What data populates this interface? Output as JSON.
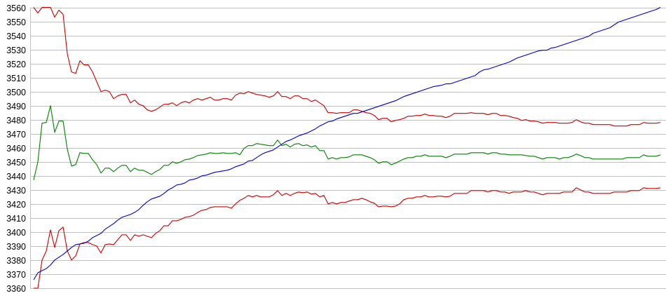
{
  "chart_data": {
    "type": "line",
    "title": "",
    "xlabel": "",
    "ylabel": "",
    "ylim": [
      3360,
      3560
    ],
    "y_tick_step": 10,
    "y_ticks": [
      "3560",
      "3550",
      "3540",
      "3530",
      "3520",
      "3510",
      "3500",
      "3490",
      "3480",
      "3470",
      "3460",
      "3450",
      "3440",
      "3430",
      "3420",
      "3410",
      "3400",
      "3390",
      "3380",
      "3370",
      "3360"
    ],
    "grid": "horizontal",
    "legend": "none",
    "x_axis_labels": "none",
    "series": [
      {
        "color": "#cc0000",
        "values": [
          3560,
          3556,
          3560,
          3560,
          3560,
          3553,
          3558,
          3555,
          3527,
          3514,
          3513,
          3522,
          3519,
          3519,
          3514,
          3507,
          3500,
          3501,
          3500,
          3495,
          3497,
          3498,
          3498,
          3492,
          3494,
          3491,
          3490,
          3487,
          3486,
          3487,
          3489,
          3491,
          3491,
          3492,
          3490,
          3492,
          3493,
          3492,
          3494,
          3495,
          3494,
          3495,
          3496,
          3494,
          3494,
          3495,
          3495,
          3494,
          3497.5,
          3499,
          3498.5,
          3500,
          3499,
          3498,
          3497.5,
          3497,
          3496,
          3497,
          3500,
          3496.5,
          3496.5,
          3495,
          3497,
          3497,
          3495,
          3495,
          3493,
          3494,
          3492,
          3490,
          3485,
          3485,
          3484.5,
          3485,
          3485,
          3485,
          3487,
          3487,
          3486,
          3485,
          3484.5,
          3483,
          3480,
          3481,
          3481,
          3478.5,
          3479.5,
          3480,
          3481,
          3482.5,
          3482.5,
          3483,
          3483,
          3484,
          3483,
          3483,
          3482.5,
          3482.5,
          3481.5,
          3482.5,
          3484.5,
          3484.5,
          3484.5,
          3484.5,
          3485,
          3484.5,
          3484.5,
          3484.5,
          3483.5,
          3484.5,
          3484.5,
          3483,
          3483,
          3482.5,
          3481.5,
          3481,
          3479.5,
          3480,
          3479,
          3479,
          3478.5,
          3477.5,
          3478,
          3478,
          3478,
          3477.5,
          3477.5,
          3477.5,
          3478,
          3480,
          3478.5,
          3477.5,
          3477.5,
          3476.5,
          3476.5,
          3476.5,
          3476.5,
          3476.5,
          3475.5,
          3475.5,
          3475.5,
          3475.5,
          3476.5,
          3476.5,
          3476.5,
          3478,
          3477.5,
          3477.5,
          3477.5,
          3478
        ]
      },
      {
        "color": "#008000",
        "values": [
          3437,
          3450,
          3477.5,
          3478,
          3490,
          3471,
          3479,
          3479,
          3459,
          3447,
          3448,
          3456.5,
          3456,
          3456,
          3451.5,
          3448,
          3442,
          3445.5,
          3445.5,
          3443,
          3445.5,
          3447.5,
          3447.5,
          3443,
          3445.5,
          3444,
          3444,
          3442.5,
          3441,
          3443,
          3444.5,
          3447.5,
          3447.5,
          3450,
          3449,
          3450,
          3451.5,
          3452,
          3453,
          3454.5,
          3455,
          3455.5,
          3456.5,
          3456,
          3456,
          3456.5,
          3456,
          3456,
          3456.5,
          3455,
          3459.5,
          3461.5,
          3461.5,
          3463,
          3462.5,
          3462,
          3461.5,
          3461.5,
          3465.5,
          3461.5,
          3462.5,
          3460.5,
          3462.5,
          3463,
          3461.5,
          3462,
          3460.5,
          3461.5,
          3458,
          3458,
          3452,
          3453,
          3452,
          3453,
          3453,
          3453.5,
          3455,
          3455,
          3455,
          3454,
          3453,
          3451.5,
          3449,
          3450,
          3450,
          3448,
          3449,
          3450.5,
          3452,
          3453,
          3453,
          3454,
          3454,
          3455,
          3454,
          3454,
          3454,
          3454,
          3453,
          3454,
          3455.5,
          3455.5,
          3455.5,
          3455.5,
          3456.5,
          3456.5,
          3456.5,
          3456.5,
          3455.5,
          3456.5,
          3456.5,
          3455.5,
          3455.5,
          3455,
          3455,
          3455,
          3455,
          3454.5,
          3454,
          3454,
          3453,
          3452,
          3453,
          3453,
          3453,
          3452,
          3453,
          3453,
          3454,
          3455.5,
          3454.5,
          3453,
          3453,
          3452,
          3452,
          3452,
          3452,
          3452,
          3452,
          3452,
          3452,
          3453,
          3453,
          3453,
          3453,
          3455,
          3454,
          3454,
          3454,
          3455
        ]
      },
      {
        "color": "#cc0000",
        "values": [
          3360,
          3360,
          3380,
          3386.5,
          3401.5,
          3389,
          3401,
          3403.5,
          3386.5,
          3380,
          3383,
          3391.5,
          3392.5,
          3392.5,
          3391,
          3390,
          3385,
          3391,
          3391.5,
          3391,
          3394.5,
          3398,
          3398,
          3394,
          3398,
          3397,
          3398,
          3397,
          3396,
          3399,
          3401,
          3404.5,
          3404.5,
          3408,
          3408,
          3409,
          3410.5,
          3411,
          3412,
          3414,
          3415.5,
          3416,
          3417.5,
          3418,
          3418,
          3418,
          3418,
          3417,
          3420,
          3422.5,
          3424,
          3426,
          3425,
          3426,
          3425,
          3425,
          3425,
          3426.5,
          3429.5,
          3426,
          3427.5,
          3426,
          3427.5,
          3428.5,
          3428,
          3428.5,
          3427,
          3427.5,
          3425,
          3426,
          3420,
          3421,
          3420,
          3421,
          3421,
          3422,
          3423,
          3423,
          3424,
          3423,
          3421.5,
          3420.5,
          3418,
          3418.5,
          3418.5,
          3418,
          3418.5,
          3420,
          3423,
          3424,
          3424,
          3425,
          3425,
          3426,
          3425,
          3425,
          3425.5,
          3425.5,
          3425,
          3425.5,
          3427.5,
          3427.5,
          3427.5,
          3427.5,
          3429.5,
          3429.5,
          3429.5,
          3429.5,
          3428.5,
          3429.5,
          3429.5,
          3428.5,
          3428.5,
          3427.5,
          3428.5,
          3428.5,
          3428.5,
          3429.5,
          3428.5,
          3428.5,
          3427.5,
          3426.5,
          3427.5,
          3427.5,
          3427.5,
          3427.5,
          3428.5,
          3428.5,
          3428.5,
          3431.5,
          3430,
          3428.5,
          3428.5,
          3427.5,
          3427.5,
          3427.5,
          3427.5,
          3427.5,
          3428.5,
          3428.5,
          3428.5,
          3428.5,
          3429.5,
          3429.5,
          3429.5,
          3431.5,
          3431,
          3431,
          3431,
          3431.5
        ]
      },
      {
        "color": "#0000cc",
        "values": [
          3366,
          3371,
          3372.5,
          3374,
          3376.5,
          3380,
          3382,
          3384,
          3386.5,
          3389,
          3391,
          3391.5,
          3392,
          3393.5,
          3396,
          3397.5,
          3399,
          3402,
          3404,
          3406,
          3408.5,
          3410.5,
          3411.5,
          3412.5,
          3414,
          3416,
          3419,
          3421.5,
          3423.5,
          3424.5,
          3425.5,
          3427.5,
          3430,
          3431.5,
          3433.5,
          3434,
          3435,
          3437,
          3437.5,
          3438.5,
          3440,
          3440.5,
          3441.5,
          3442.5,
          3443,
          3443.5,
          3444,
          3445,
          3446.5,
          3447.5,
          3448.5,
          3450.5,
          3451,
          3453,
          3455,
          3456.5,
          3457.5,
          3458.5,
          3460.5,
          3462.5,
          3464.5,
          3465.5,
          3467,
          3468.5,
          3469.5,
          3470.5,
          3472,
          3473.5,
          3475.5,
          3477,
          3478.5,
          3479,
          3480.5,
          3481.5,
          3482.5,
          3483.5,
          3484.5,
          3484.5,
          3485.5,
          3486.5,
          3487.5,
          3488.5,
          3489.5,
          3490.5,
          3491.5,
          3492.5,
          3493.5,
          3495,
          3496.5,
          3497.5,
          3498.5,
          3499.5,
          3500.5,
          3501.5,
          3502.5,
          3503.5,
          3504,
          3504.5,
          3505.5,
          3505.5,
          3506.5,
          3507.5,
          3508.5,
          3509.5,
          3510.5,
          3511.5,
          3514,
          3515.5,
          3516,
          3517,
          3518,
          3519,
          3520,
          3521,
          3522.5,
          3524,
          3525,
          3526,
          3527,
          3528,
          3529,
          3529.5,
          3529.5,
          3531,
          3531.5,
          3532.5,
          3533.5,
          3534.5,
          3535.5,
          3536.5,
          3537.5,
          3538.5,
          3539.5,
          3541.5,
          3542.5,
          3543.5,
          3544.5,
          3545.5,
          3547.5,
          3549.5,
          3550.5,
          3551.5,
          3552.5,
          3553.5,
          3554.5,
          3555.5,
          3556.5,
          3557.5,
          3558.5,
          3560
        ]
      }
    ],
    "colors": {
      "grid": "#c0c0c0",
      "background": "#ffffff"
    }
  }
}
